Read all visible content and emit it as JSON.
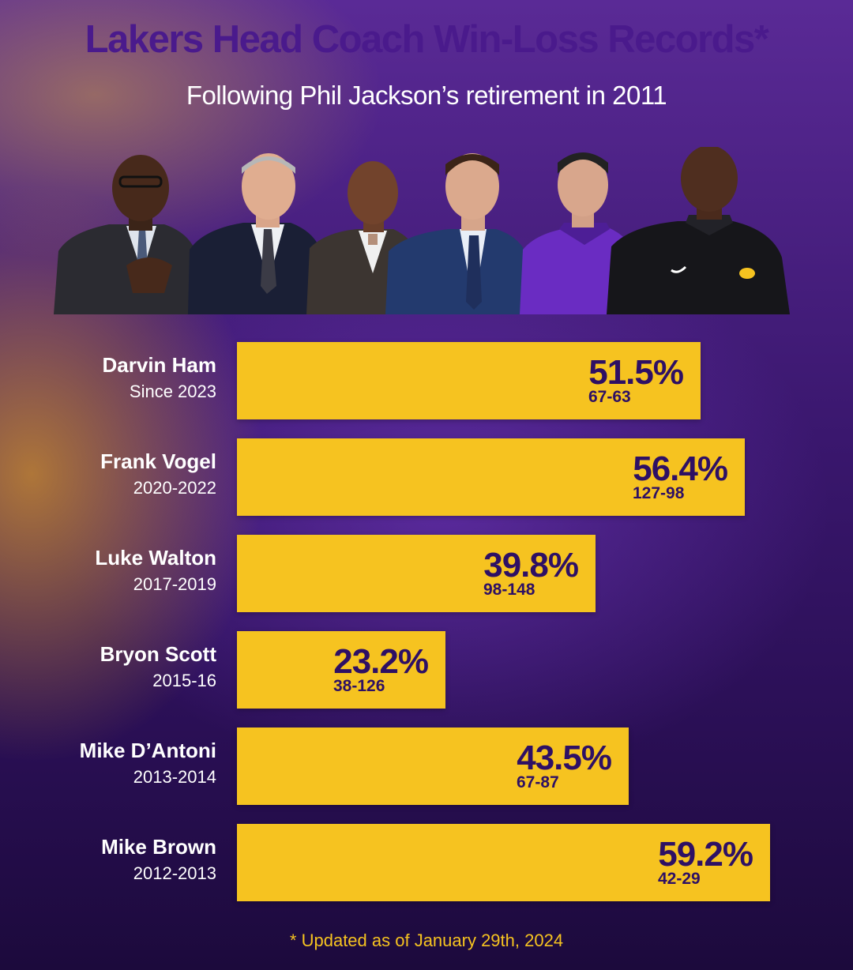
{
  "chart_data": {
    "type": "bar",
    "orientation": "horizontal",
    "title": "Lakers Head Coach Win-Loss Records*",
    "subtitle": "Following Phil Jackson’s retirement in 2011",
    "footnote": "* Updated as of January 29th, 2024",
    "value_unit": "%",
    "bar_color": "#f6c320",
    "categories": [
      "Darvin Ham",
      "Frank Vogel",
      "Luke Walton",
      "Bryon Scott",
      "Mike D’Antoni",
      "Mike Brown"
    ],
    "items": [
      {
        "coach": "Darvin Ham",
        "years": "Since 2023",
        "value": 51.5,
        "label": "51.5%",
        "record": "67-63"
      },
      {
        "coach": "Frank Vogel",
        "years": "2020-2022",
        "value": 56.4,
        "label": "56.4%",
        "record": "127-98"
      },
      {
        "coach": "Luke Walton",
        "years": "2017-2019",
        "value": 39.8,
        "label": "39.8%",
        "record": "98-148"
      },
      {
        "coach": "Bryon Scott",
        "years": "2015-16",
        "value": 23.2,
        "label": "23.2%",
        "record": "38-126"
      },
      {
        "coach": "Mike D’Antoni",
        "years": "2013-2014",
        "value": 43.5,
        "label": "43.5%",
        "record": "67-87"
      },
      {
        "coach": "Mike Brown",
        "years": "2012-2013",
        "value": 59.2,
        "label": "59.2%",
        "record": "42-29"
      }
    ]
  },
  "photos": {
    "count": 6
  },
  "colors": {
    "title": "#4a1a8c",
    "bar": "#f6c320",
    "bar_text": "#2e1064",
    "footnote": "#f6c320"
  }
}
